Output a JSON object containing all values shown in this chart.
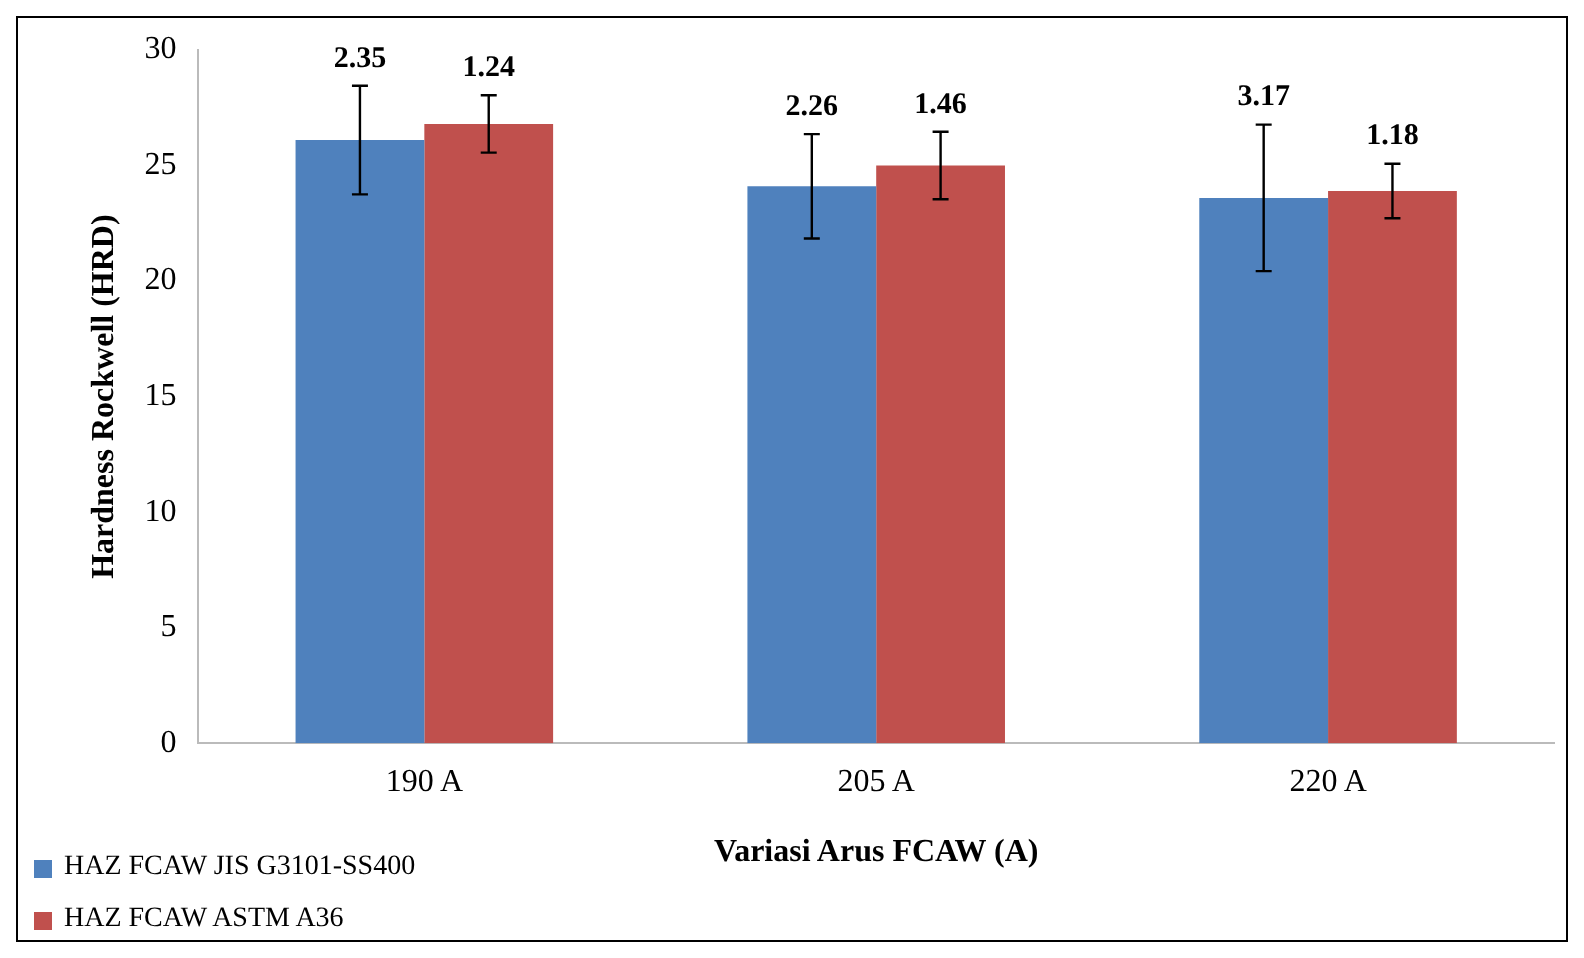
{
  "chart_data": {
    "type": "bar",
    "xlabel": "Variasi Arus FCAW (A)",
    "ylabel": "Hardness Rockwell (HRD)",
    "categories": [
      "190 A",
      "205 A",
      "220 A"
    ],
    "series": [
      {
        "name": "HAZ FCAW JIS G3101-SS400",
        "color": "#4f81bd",
        "values": [
          26.1,
          24.1,
          23.6
        ],
        "errors": [
          2.35,
          2.26,
          3.17
        ]
      },
      {
        "name": "HAZ FCAW ASTM A36",
        "color": "#c0504d",
        "values": [
          26.8,
          25.0,
          23.9
        ],
        "errors": [
          1.24,
          1.46,
          1.18
        ]
      }
    ],
    "annotations": [
      "2.35",
      "1.24",
      "2.26",
      "1.46",
      "3.17",
      "1.18"
    ],
    "ylim": [
      0,
      30
    ],
    "yticks": [
      0,
      5,
      10,
      15,
      20,
      25,
      30
    ],
    "grid": false,
    "legend": "bottom left"
  }
}
